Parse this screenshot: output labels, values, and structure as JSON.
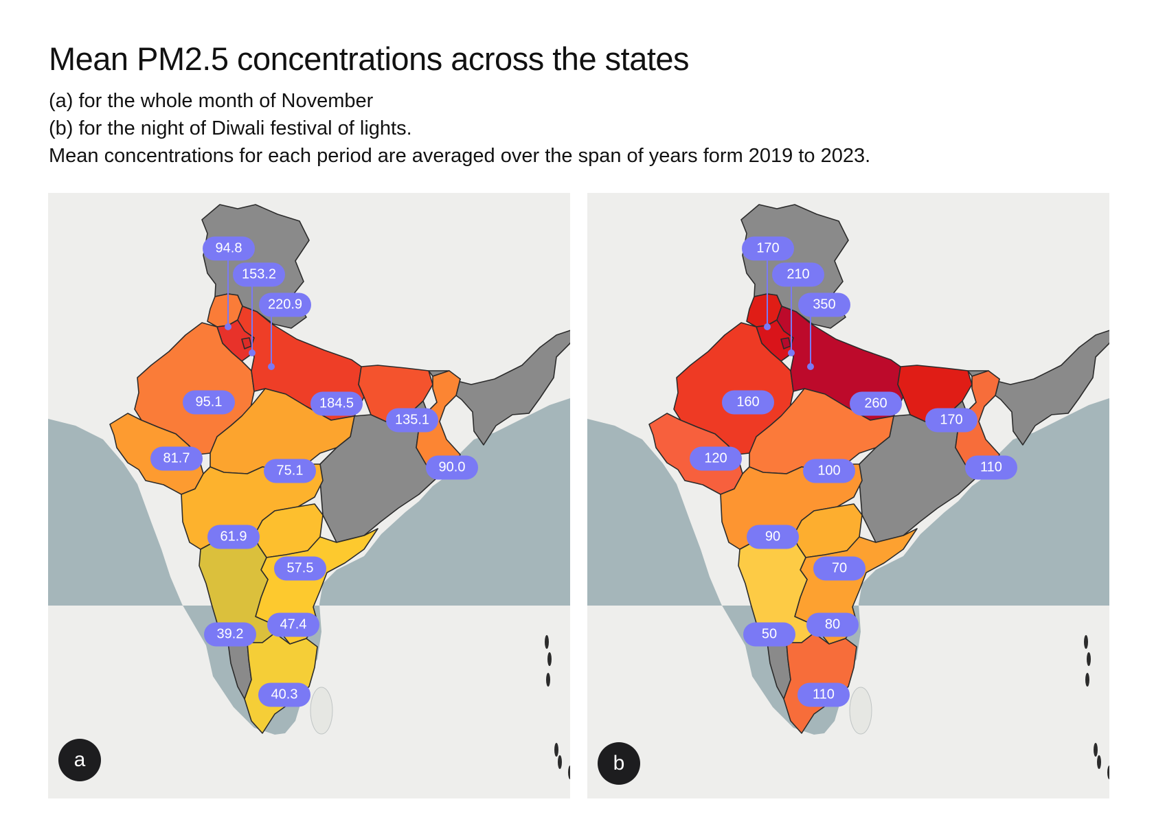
{
  "header": {
    "title": "Mean PM2.5 concentrations across the states",
    "line_a": "(a) for the whole month of November",
    "line_b": "(b) for the night of Diwali festival of lights.",
    "line_c": "Mean concentrations for each period are averaged over the span of years form 2019 to 2023."
  },
  "colors": {
    "land": "#eeeeec",
    "sea": "#a5b6ba",
    "no_data": "#8a8a8a",
    "label_bg": "#7a79f5",
    "badge_bg": "#1d1d1f"
  },
  "panels": [
    {
      "badge": "a",
      "states": {
        "punjab": {
          "value": "94.8",
          "color": "#fa7c38"
        },
        "haryana": {
          "value": "153.2",
          "color": "#e8322a"
        },
        "delhi": {
          "value": "220.9",
          "color": "#dc2c27"
        },
        "rajasthan": {
          "value": "95.1",
          "color": "#fa7c38"
        },
        "uttar_pradesh": {
          "value": "184.5",
          "color": "#ee3e27"
        },
        "bihar": {
          "value": "135.1",
          "color": "#f4532d"
        },
        "gujarat": {
          "value": "81.7",
          "color": "#fd9b30"
        },
        "madhya_pradesh": {
          "value": "75.1",
          "color": "#fca42e"
        },
        "west_bengal": {
          "value": "90.0",
          "color": "#fc8533"
        },
        "maharashtra": {
          "value": "61.9",
          "color": "#fdb22d"
        },
        "telangana": {
          "value": "57.5",
          "color": "#fdbf2e"
        },
        "andhra_pradesh": {
          "value": "47.4",
          "color": "#fdc92e"
        },
        "karnataka": {
          "value": "39.2",
          "color": "#dbc03c"
        },
        "tamil_nadu": {
          "value": "40.3",
          "color": "#f5ce37"
        }
      }
    },
    {
      "badge": "b",
      "states": {
        "punjab": {
          "value": "170",
          "color": "#e01d16"
        },
        "haryana": {
          "value": "210",
          "color": "#d9141a"
        },
        "delhi": {
          "value": "350",
          "color": "#b7092c"
        },
        "rajasthan": {
          "value": "160",
          "color": "#ee3a24"
        },
        "uttar_pradesh": {
          "value": "260",
          "color": "#bd0a2b"
        },
        "bihar": {
          "value": "170",
          "color": "#e01d16"
        },
        "gujarat": {
          "value": "120",
          "color": "#f7603d"
        },
        "madhya_pradesh": {
          "value": "100",
          "color": "#fb7a3a"
        },
        "west_bengal": {
          "value": "110",
          "color": "#f76d3a"
        },
        "maharashtra": {
          "value": "90",
          "color": "#fd9531"
        },
        "telangana": {
          "value": "70",
          "color": "#fdae2f"
        },
        "andhra_pradesh": {
          "value": "80",
          "color": "#fda130"
        },
        "karnataka": {
          "value": "50",
          "color": "#fdcb45"
        },
        "tamil_nadu": {
          "value": "110",
          "color": "#f76d3a"
        }
      }
    }
  ]
}
